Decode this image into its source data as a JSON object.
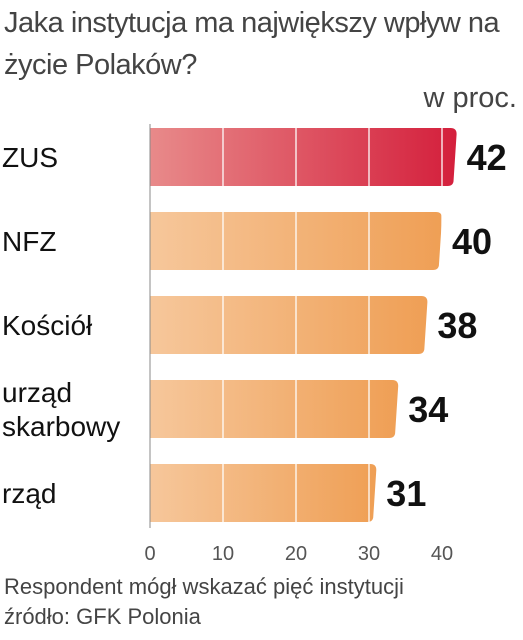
{
  "chart_data": {
    "type": "bar",
    "orientation": "horizontal",
    "title": "Jaka instytucja ma największy wpływ na życie Polaków?",
    "unit_label": "w proc.",
    "categories": [
      "ZUS",
      "NFZ",
      "Kościół",
      "urząd skarbowy",
      "rząd"
    ],
    "values": [
      42,
      40,
      38,
      34,
      31
    ],
    "xlim": [
      0,
      42
    ],
    "xticks": [
      0,
      10,
      20,
      30,
      40
    ],
    "grid": true,
    "highlight_color": "#d7263d",
    "bar_color": "#f0a35e"
  },
  "footnote": "Respondent mógł wskazać pięć instytucji",
  "source": "źródło: GFK Polonia"
}
